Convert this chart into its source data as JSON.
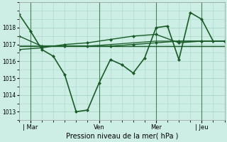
{
  "background_color": "#cceee4",
  "grid_color": "#aad4c8",
  "line_color": "#1a5c28",
  "marker_color": "#1a5c28",
  "xlabel": "Pression niveau de la mer( hPa )",
  "xlim": [
    0,
    108
  ],
  "ylim": [
    1012.5,
    1019.5
  ],
  "yticks": [
    1013,
    1014,
    1015,
    1016,
    1017,
    1018
  ],
  "xtick_labels": [
    "| Mar",
    "Ven",
    "Mer",
    "| Jeu"
  ],
  "xtick_positions": [
    6,
    42,
    72,
    96
  ],
  "series": [
    {
      "x": [
        0,
        6,
        12,
        18,
        24,
        30,
        36,
        42,
        48,
        54,
        60,
        66,
        72,
        78,
        84,
        90,
        96,
        102,
        108
      ],
      "y": [
        1018.8,
        1017.8,
        1016.7,
        1016.3,
        1015.2,
        1013.0,
        1013.1,
        1014.7,
        1016.1,
        1015.8,
        1015.3,
        1016.2,
        1018.0,
        1018.1,
        1016.1,
        1018.9,
        1018.5,
        1017.2,
        1017.2
      ],
      "marker": true,
      "lw": 1.2
    },
    {
      "x": [
        0,
        12,
        24,
        36,
        48,
        60,
        72,
        84,
        96,
        108
      ],
      "y": [
        1017.5,
        1016.9,
        1016.9,
        1016.9,
        1016.9,
        1017.0,
        1017.1,
        1017.2,
        1017.2,
        1017.2
      ],
      "marker": true,
      "lw": 1.0
    },
    {
      "x": [
        0,
        12,
        24,
        36,
        48,
        60,
        72,
        84,
        96,
        108
      ],
      "y": [
        1016.9,
        1016.9,
        1016.9,
        1016.9,
        1016.9,
        1016.9,
        1016.9,
        1016.9,
        1016.9,
        1016.9
      ],
      "marker": false,
      "lw": 1.0
    },
    {
      "x": [
        0,
        12,
        24,
        36,
        48,
        60,
        72,
        84,
        96,
        108
      ],
      "y": [
        1016.7,
        1016.8,
        1017.0,
        1017.1,
        1017.3,
        1017.5,
        1017.6,
        1017.1,
        1017.2,
        1017.2
      ],
      "marker": true,
      "lw": 1.0
    },
    {
      "x": [
        0,
        12,
        24,
        36,
        48,
        60,
        72,
        84,
        96,
        108
      ],
      "y": [
        1016.9,
        1016.9,
        1016.9,
        1016.9,
        1017.0,
        1017.1,
        1017.2,
        1017.2,
        1017.2,
        1017.2
      ],
      "marker": false,
      "lw": 0.9
    }
  ],
  "vlines": [
    6,
    42,
    72,
    96
  ]
}
